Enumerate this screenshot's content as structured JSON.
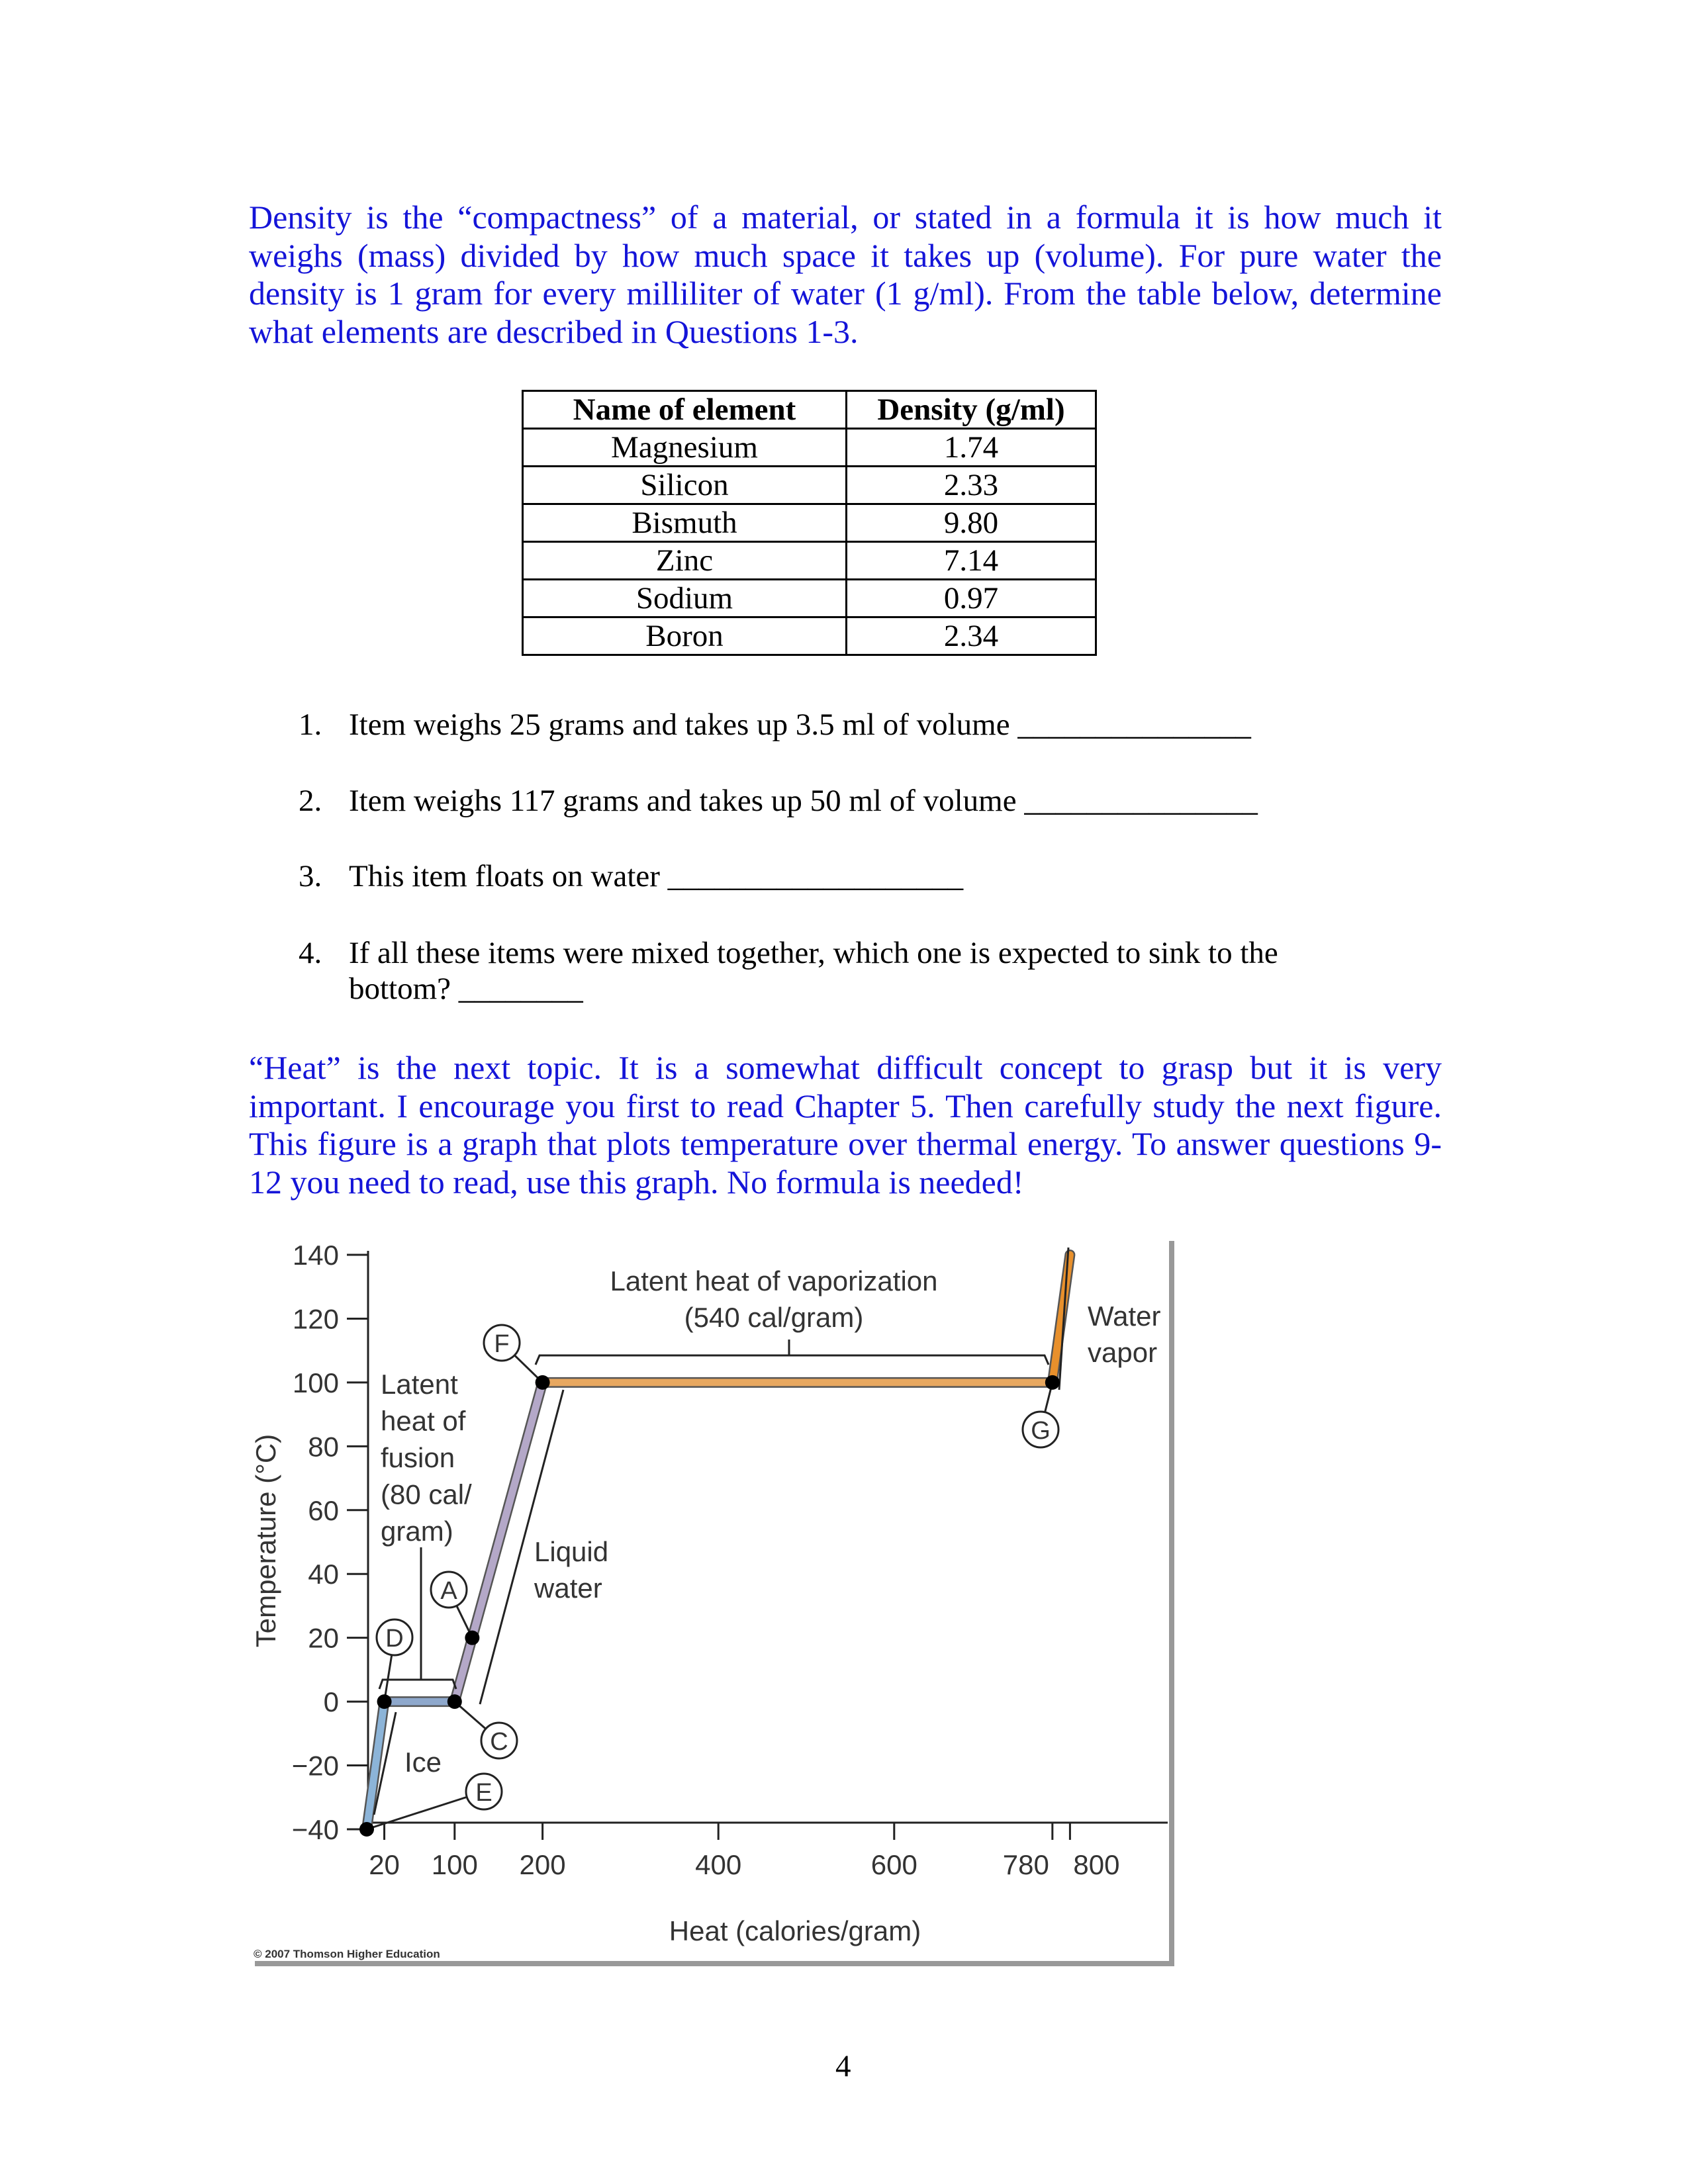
{
  "intro_lines": [
    "Density is the “compactness” of a material, or stated in a formula it is how much it",
    "weighs (mass) divided by how much space it takes up (volume).  For pure water the",
    "density is 1 gram for every milliliter of water (1 g/ml).  From the table below, determine",
    "what elements are described in Questions 1-3."
  ],
  "table": {
    "headers": [
      "Name of element",
      "Density (g/ml)"
    ],
    "rows": [
      [
        "Magnesium",
        "1.74"
      ],
      [
        "Silicon",
        "2.33"
      ],
      [
        "Bismuth",
        "9.80"
      ],
      [
        "Zinc",
        "7.14"
      ],
      [
        "Sodium",
        "0.97"
      ],
      [
        "Boron",
        "2.34"
      ]
    ]
  },
  "questions": [
    {
      "num": "1.",
      "text": "Item weighs 25 grams and takes up 3.5 ml of volume _______________"
    },
    {
      "num": "2.",
      "text": "Item weighs 117 grams and takes up 50 ml of volume _______________"
    },
    {
      "num": "3.",
      "text": "This item floats on water ___________________"
    },
    {
      "num": "4.",
      "text": "If all these items were mixed together, which one is expected to sink to the",
      "text2": "bottom? ________"
    }
  ],
  "heat_lines": [
    "“Heat” is the next topic.  It is a somewhat difficult concept to grasp but it is very",
    "important. I encourage you first to read Chapter 5. Then carefully study the next figure.",
    "This figure is a graph that plots temperature over thermal energy. To answer questions 9-",
    "12 you need to read, use this graph. No formula is needed!"
  ],
  "chart_data": {
    "type": "line",
    "xlabel": "Heat (calories/gram)",
    "ylabel": "Temperature (°C)",
    "x_ticks": [
      20,
      100,
      200,
      400,
      600,
      780,
      800
    ],
    "y_ticks": [
      140,
      120,
      100,
      80,
      60,
      40,
      20,
      0,
      -20,
      -40
    ],
    "y_tick_labels": [
      "140",
      "120",
      "100",
      "80",
      "60",
      "40",
      "20",
      "0",
      "−20",
      "−40"
    ],
    "ylim": [
      -40,
      140
    ],
    "series": [
      {
        "points": [
          [
            0,
            -40
          ],
          [
            20,
            0
          ],
          [
            100,
            0
          ],
          [
            200,
            100
          ],
          [
            780,
            100
          ],
          [
            800,
            140
          ]
        ]
      }
    ],
    "segment_colors": [
      "#8cb4d8",
      "#8ea8cc",
      "#b4a8c8",
      "#e8a860",
      "#e8902c"
    ],
    "marked_points": [
      {
        "label": "E",
        "x": 0,
        "y": -40
      },
      {
        "label": "D",
        "x": 20,
        "y": 0
      },
      {
        "label": "C",
        "x": 100,
        "y": 0
      },
      {
        "label": "A",
        "x": 120,
        "y": 20
      },
      {
        "label": "F",
        "x": 200,
        "y": 100
      },
      {
        "label": "G",
        "x": 780,
        "y": 100
      }
    ],
    "annotations": {
      "vaporization": [
        "Latent heat of vaporization",
        "(540 cal/gram)"
      ],
      "vapor": [
        "Water",
        "vapor"
      ],
      "fusion": [
        "Latent",
        "heat of",
        "fusion",
        "(80 cal/",
        "gram)"
      ],
      "liquid": [
        "Liquid",
        "water"
      ],
      "ice": "Ice"
    },
    "credit": "© 2007 Thomson Higher Education"
  },
  "page_number": "4"
}
